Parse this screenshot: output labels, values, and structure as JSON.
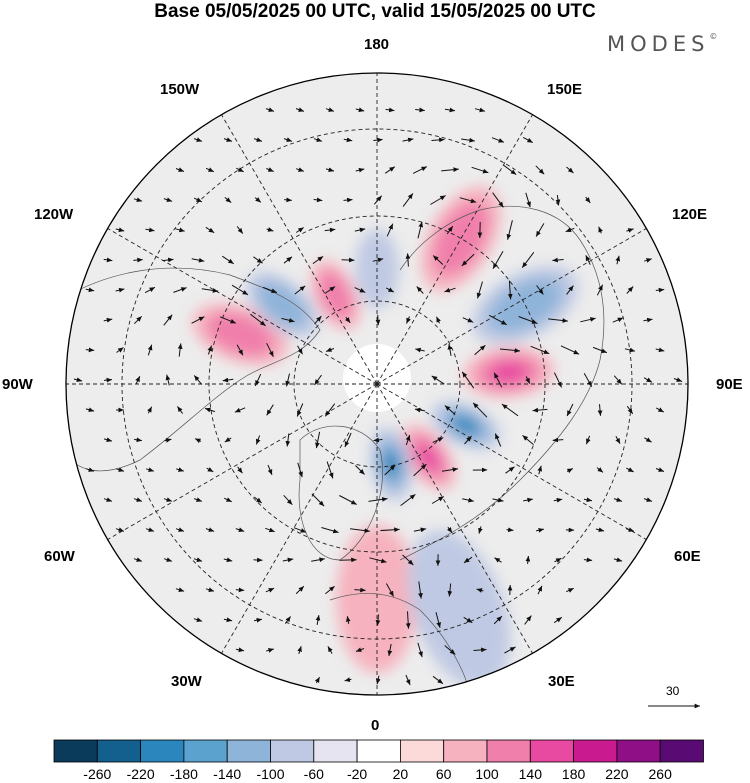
{
  "title": "Base 05/05/2025 00 UTC, valid 15/05/2025 00 UTC",
  "brand": "MODES",
  "brand_mark": "©",
  "longitude_labels": {
    "lon_180": "180",
    "lon_150w": "150W",
    "lon_150e": "150E",
    "lon_120w": "120W",
    "lon_120e": "120E",
    "lon_90w": "90W",
    "lon_90e": "90E",
    "lon_60w": "60W",
    "lon_60e": "60E",
    "lon_30w": "30W",
    "lon_30e": "30E",
    "lon_0": "0"
  },
  "vector_reference": {
    "label": "30"
  },
  "colorbar": {
    "labels": [
      "-260",
      "-220",
      "-180",
      "-140",
      "-100",
      "-60",
      "-20",
      "20",
      "60",
      "100",
      "140",
      "180",
      "220",
      "260"
    ],
    "colors": [
      "#0b3b5a",
      "#135f8e",
      "#2b86bd",
      "#5ba2cf",
      "#8fb4d9",
      "#bfc9e3",
      "#e6e4f1",
      "#ffffff",
      "#fbdad9",
      "#f6b2be",
      "#f07fab",
      "#e84aa2",
      "#c91b8f",
      "#8e0f86",
      "#5a0a73"
    ]
  },
  "field": {
    "background_color": "#ededed",
    "coast_color": "#555555",
    "anomaly_centers": [
      {
        "sign": "neg",
        "intensity": 1,
        "lon": 180,
        "lat": 62
      },
      {
        "sign": "pos",
        "intensity": 2,
        "lon": 150,
        "lat": 50
      },
      {
        "sign": "neg",
        "intensity": 2,
        "lon": 118,
        "lat": 50
      },
      {
        "sign": "pos",
        "intensity": 3,
        "lon": 95,
        "lat": 58
      },
      {
        "sign": "neg",
        "intensity": 3,
        "lon": 65,
        "lat": 66
      },
      {
        "sign": "pos",
        "intensity": 3,
        "lon": 35,
        "lat": 68
      },
      {
        "sign": "neg",
        "intensity": 3,
        "lon": 10,
        "lat": 70
      },
      {
        "sign": "pos",
        "intensity": 1,
        "lon": 0,
        "lat": 40
      },
      {
        "sign": "neg",
        "intensity": 1,
        "lon": 20,
        "lat": 35
      },
      {
        "sign": "pos",
        "intensity": 2,
        "lon": 250,
        "lat": 55
      },
      {
        "sign": "neg",
        "intensity": 2,
        "lon": 230,
        "lat": 60
      },
      {
        "sign": "pos",
        "intensity": 2,
        "lon": 205,
        "lat": 66
      }
    ]
  }
}
